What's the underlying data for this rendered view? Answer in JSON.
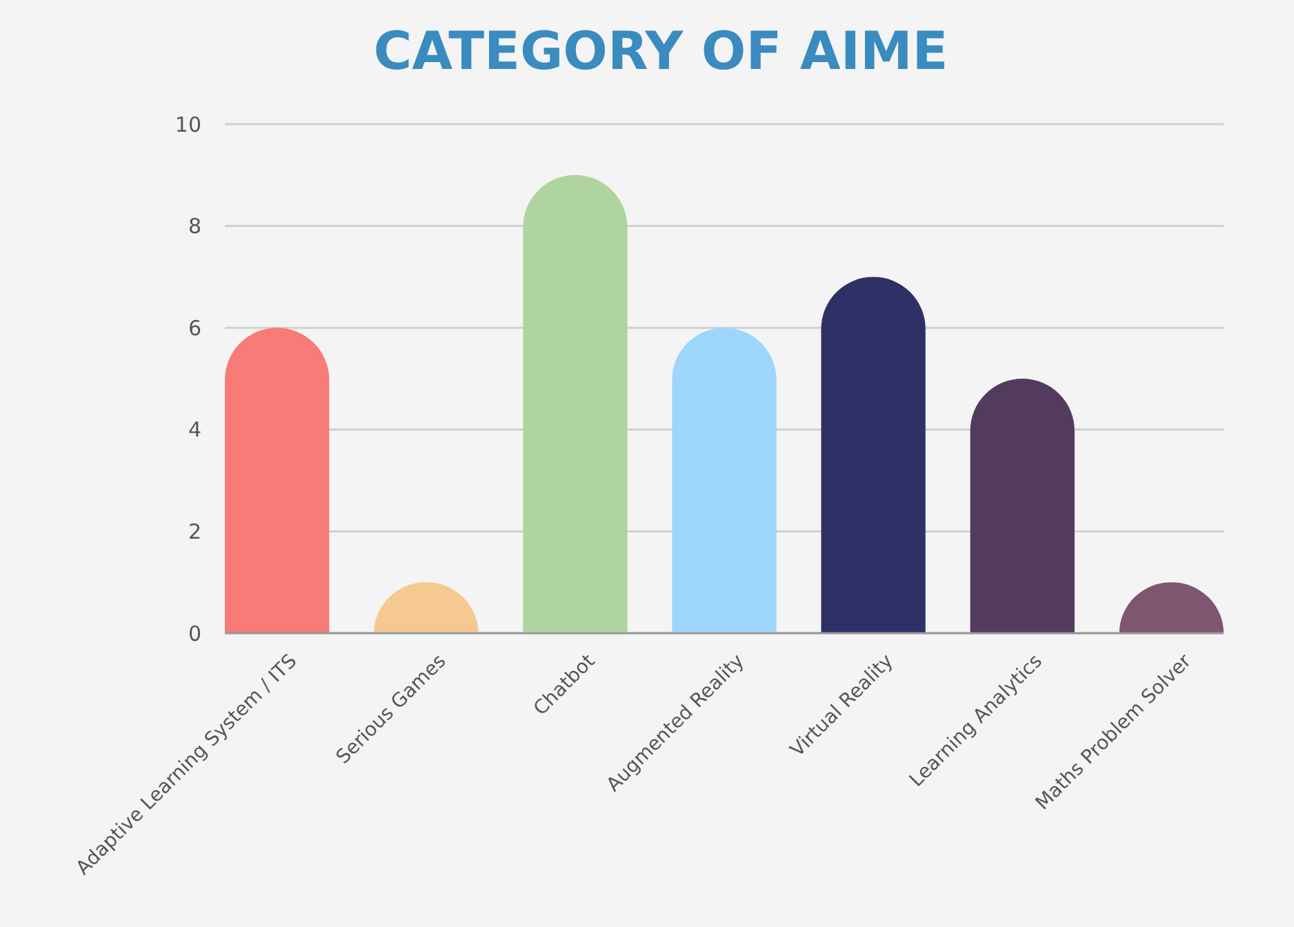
{
  "chart_data": {
    "type": "bar",
    "title": "CATEGORY OF AIME",
    "categories": [
      "Adaptive Learning System / ITS",
      "Serious Games",
      "Chatbot",
      "Augmented Reality",
      "Virtual Reality",
      "Learning Analytics",
      "Maths Problem Solver"
    ],
    "values": [
      6,
      1,
      9,
      6,
      7,
      5,
      1
    ],
    "colors": [
      "#f77b77",
      "#f5c98f",
      "#b0d4a0",
      "#9dd6fb",
      "#2f3066",
      "#533b5e",
      "#7e5670"
    ],
    "ylim": [
      0,
      10
    ],
    "yticks": [
      0,
      2,
      4,
      6,
      8,
      10
    ],
    "grid": "y"
  }
}
